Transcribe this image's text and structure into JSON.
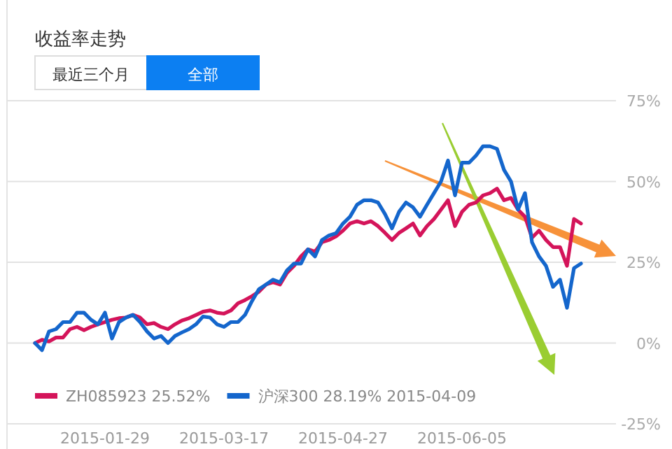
{
  "chart_data": {
    "type": "line",
    "title": "收益率走势",
    "annotations": [
      "最近三个月",
      "全部"
    ],
    "categories": [
      null,
      null,
      null,
      null,
      null,
      null,
      null,
      null,
      null,
      null,
      "2015-01-29",
      null,
      null,
      null,
      null,
      null,
      null,
      null,
      null,
      null,
      null,
      null,
      null,
      null,
      null,
      null,
      null,
      "2015-03-17",
      null,
      null,
      null,
      null,
      null,
      null,
      null,
      null,
      null,
      null,
      null,
      null,
      null,
      null,
      null,
      null,
      "2015-04-27",
      null,
      null,
      null,
      null,
      null,
      null,
      null,
      null,
      null,
      null,
      null,
      null,
      null,
      null,
      null,
      null,
      "2015-06-05",
      null,
      null,
      null,
      null,
      null,
      null,
      null,
      null,
      null,
      null,
      null,
      null,
      null,
      null,
      null,
      null,
      null
    ],
    "series": [
      {
        "name": "ZH085923 25.52%",
        "color": "#d4145a",
        "values": [
          0,
          1,
          0.5,
          1.7,
          1.7,
          4.3,
          5,
          4,
          5,
          5.8,
          6.5,
          7.2,
          7.7,
          7.9,
          8.7,
          7.9,
          5.8,
          6.2,
          5,
          4.3,
          5.8,
          7,
          7.7,
          8.7,
          9.7,
          10.1,
          9.4,
          9.1,
          10.1,
          12.3,
          13.3,
          14.5,
          15.9,
          18.1,
          18.8,
          18.1,
          21.7,
          23.9,
          26.8,
          29,
          28.3,
          31.2,
          31.9,
          33,
          34.8,
          37,
          37.7,
          37,
          37.7,
          36.2,
          34.1,
          31.9,
          34.1,
          35.5,
          37,
          33.3,
          36.2,
          38.4,
          41.3,
          44.2,
          36.2,
          40.6,
          42.8,
          43.5,
          45.7,
          46.4,
          47.8,
          44.2,
          44.9,
          41.3,
          39.1,
          32.6,
          34.8,
          31.9,
          29.7,
          29.7,
          23.9,
          38.4,
          37
        ]
      },
      {
        "name": "沪深300 28.19% 2015-04-09",
        "color": "#1466cc",
        "values": [
          0,
          -2.2,
          3.6,
          4.3,
          6.5,
          6.5,
          9.4,
          9.4,
          7.2,
          5.8,
          9.4,
          1.4,
          6.5,
          7.9,
          8.7,
          6.5,
          3.6,
          1.4,
          2.2,
          0,
          2.2,
          3.3,
          4.3,
          5.8,
          8.2,
          7.9,
          5.8,
          5,
          6.5,
          6.5,
          8.7,
          13,
          16.7,
          18.1,
          19.6,
          18.8,
          22.5,
          24.6,
          24.6,
          29,
          26.8,
          31.9,
          33.3,
          34,
          37,
          39.1,
          42.8,
          44.2,
          44.2,
          43.5,
          39.9,
          35.5,
          40.6,
          43.5,
          42,
          39.1,
          42.8,
          46.4,
          50,
          56.5,
          45.7,
          55.8,
          55.8,
          58,
          60.9,
          60.9,
          60.1,
          53.6,
          50,
          41.3,
          46.4,
          31.2,
          26.8,
          23.9,
          17.4,
          19.6,
          10.9,
          23.2,
          24.6
        ]
      }
    ],
    "ylim": [
      -25,
      75
    ],
    "yticks": [
      {
        "value": 75,
        "label": "75%"
      },
      {
        "value": 50,
        "label": "50%"
      },
      {
        "value": 25,
        "label": "25%"
      },
      {
        "value": 0,
        "label": "0%"
      },
      {
        "value": -25,
        "label": "-25%"
      }
    ],
    "grid": "y",
    "legend": "bottom left"
  }
}
